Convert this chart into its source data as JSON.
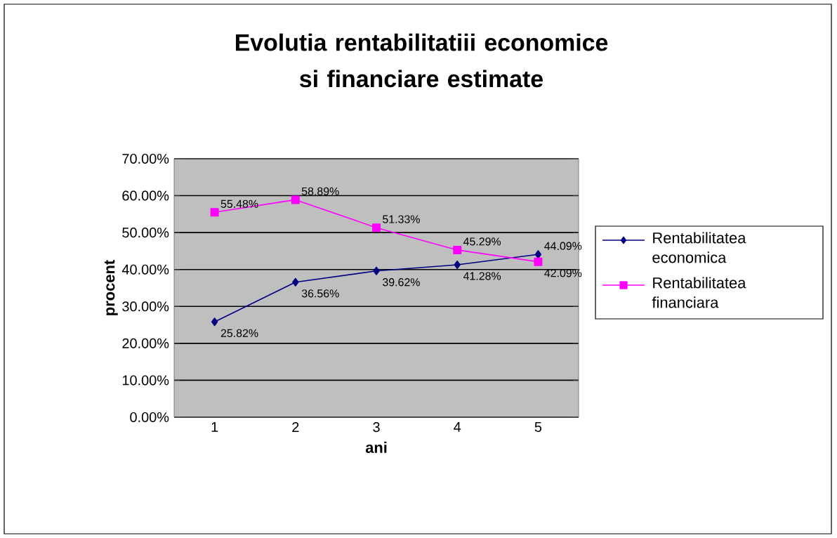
{
  "chart_data": {
    "type": "line",
    "title": "Evolutia rentabilitatiii economice si financiare estimate",
    "xlabel": "ani",
    "ylabel": "procent",
    "categories": [
      "1",
      "2",
      "3",
      "4",
      "5"
    ],
    "series": [
      {
        "name": "Rentabilitatea economica",
        "color": "#000080",
        "marker": "diamond",
        "values": [
          25.82,
          36.56,
          39.62,
          41.28,
          44.09
        ],
        "value_labels": [
          "25.82%",
          "36.56%",
          "39.62%",
          "41.28%",
          "44.09%"
        ]
      },
      {
        "name": "Rentabilitatea financiara",
        "color": "#ff00ff",
        "marker": "square",
        "values": [
          55.48,
          58.89,
          51.33,
          45.29,
          42.09
        ],
        "value_labels": [
          "55.48%",
          "58.89%",
          "51.33%",
          "45.29%",
          "42.09%"
        ]
      }
    ],
    "ylim": [
      0,
      70
    ],
    "yticks": [
      {
        "value": 0,
        "label": "0.00%"
      },
      {
        "value": 10,
        "label": "10.00%"
      },
      {
        "value": 20,
        "label": "20.00%"
      },
      {
        "value": 30,
        "label": "30.00%"
      },
      {
        "value": 40,
        "label": "40.00%"
      },
      {
        "value": 50,
        "label": "50.00%"
      },
      {
        "value": 60,
        "label": "60.00%"
      },
      {
        "value": 70,
        "label": "70.00%"
      }
    ],
    "grid": "y",
    "legend": "right",
    "line_style": "solid"
  }
}
